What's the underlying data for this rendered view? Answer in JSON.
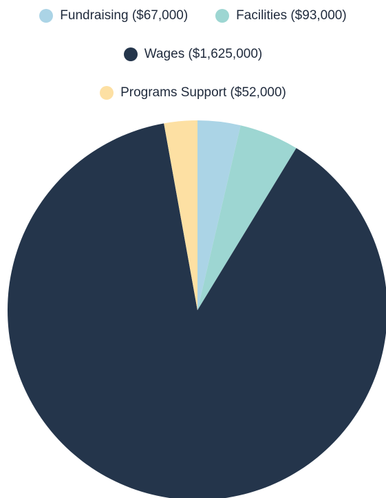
{
  "chart_data": {
    "type": "pie",
    "slices": [
      {
        "label": "Fundraising ($67,000)",
        "name": "Fundraising",
        "value": 67000,
        "color": "#abd4e6"
      },
      {
        "label": "Facilities ($93,000)",
        "name": "Facilities",
        "value": 93000,
        "color": "#9dd6d2"
      },
      {
        "label": "Wages ($1,625,000)",
        "name": "Wages",
        "value": 1625000,
        "color": "#24354b"
      },
      {
        "label": "Programs Support ($52,000)",
        "name": "Programs Support",
        "value": 52000,
        "color": "#fde0a3"
      }
    ],
    "legend_position": "top",
    "start": "12 o'clock",
    "direction": "clockwise"
  }
}
